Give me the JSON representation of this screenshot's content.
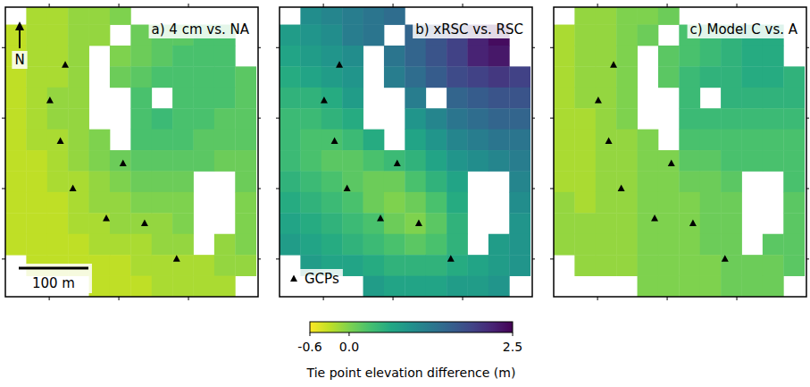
{
  "chart_data": [
    {
      "type": "heatmap",
      "title": "a) 4 cm vs. NA",
      "x": [
        15,
        45,
        75,
        105,
        135,
        165,
        195,
        225,
        255,
        285,
        315,
        345
      ],
      "y": [
        405,
        375,
        345,
        315,
        285,
        255,
        225,
        195,
        165,
        135,
        105,
        75,
        45,
        15
      ],
      "values": [
        [
          null,
          -0.2,
          -0.2,
          -0.1,
          -0.1,
          0.0,
          null,
          null,
          null,
          null,
          null,
          null
        ],
        [
          -0.3,
          -0.2,
          -0.2,
          -0.1,
          -0.1,
          null,
          0.1,
          0.2,
          0.2,
          0.3,
          0.3,
          null
        ],
        [
          -0.3,
          -0.2,
          -0.2,
          -0.1,
          null,
          0.0,
          0.1,
          0.2,
          0.3,
          0.3,
          0.3,
          null
        ],
        [
          -0.3,
          -0.2,
          -0.2,
          -0.1,
          null,
          0.1,
          0.2,
          0.3,
          0.3,
          0.3,
          0.3,
          0.2
        ],
        [
          -0.3,
          -0.2,
          -0.1,
          -0.1,
          null,
          null,
          0.3,
          null,
          0.3,
          0.3,
          0.3,
          0.2
        ],
        [
          -0.3,
          -0.2,
          -0.1,
          -0.1,
          null,
          null,
          0.3,
          0.4,
          0.3,
          0.3,
          0.2,
          0.2
        ],
        [
          -0.3,
          -0.2,
          -0.2,
          -0.1,
          0.0,
          null,
          0.3,
          0.3,
          0.3,
          0.2,
          0.2,
          0.2
        ],
        [
          -0.3,
          -0.3,
          -0.2,
          -0.1,
          0.0,
          0.1,
          0.2,
          0.2,
          0.2,
          0.2,
          0.1,
          0.1
        ],
        [
          -0.3,
          -0.3,
          -0.2,
          -0.2,
          -0.1,
          0.0,
          0.1,
          0.1,
          0.1,
          null,
          null,
          0.1
        ],
        [
          -0.3,
          -0.3,
          -0.3,
          -0.2,
          -0.1,
          -0.1,
          0.0,
          0.0,
          0.0,
          null,
          null,
          0.0
        ],
        [
          -0.3,
          -0.3,
          -0.3,
          -0.2,
          -0.2,
          -0.1,
          -0.1,
          -0.1,
          0.0,
          null,
          null,
          0.0
        ],
        [
          -0.3,
          -0.3,
          -0.3,
          -0.3,
          -0.2,
          -0.2,
          -0.2,
          -0.1,
          -0.1,
          null,
          -0.1,
          0.0
        ],
        [
          null,
          -0.3,
          -0.3,
          -0.3,
          -0.3,
          -0.3,
          -0.2,
          -0.2,
          -0.2,
          -0.2,
          -0.1,
          -0.1
        ],
        [
          null,
          null,
          null,
          null,
          -0.3,
          -0.3,
          -0.3,
          -0.2,
          -0.2,
          -0.2,
          -0.2,
          null
        ]
      ],
      "xlim": [
        0,
        363
      ],
      "ylim": [
        0,
        415
      ],
      "xticks": [
        63,
        163,
        263
      ],
      "yticks": [
        54,
        155,
        256,
        357
      ],
      "tick_labels": false,
      "series": [
        {
          "type": "scatter",
          "marker": "triangle",
          "color": "#000000",
          "x": [
            86,
            64,
            79,
            169,
            97,
            145,
            200,
            246
          ],
          "values": [
            332,
            281,
            223,
            191,
            155,
            112,
            105,
            54
          ]
        }
      ],
      "scale_bar": {
        "label": "100 m",
        "length": 100
      },
      "north_arrow": "N"
    },
    {
      "type": "heatmap",
      "title": "b) xRSC vs. RSC",
      "x": [
        15,
        45,
        75,
        105,
        135,
        165,
        195,
        225,
        255,
        285,
        315,
        345
      ],
      "y": [
        405,
        375,
        345,
        315,
        285,
        255,
        225,
        195,
        165,
        135,
        105,
        75,
        45,
        15
      ],
      "values": [
        [
          null,
          1.0,
          1.1,
          1.2,
          1.3,
          1.4,
          null,
          null,
          null,
          null,
          null,
          null
        ],
        [
          0.8,
          0.9,
          1.0,
          1.2,
          1.3,
          null,
          1.5,
          1.7,
          1.9,
          2.2,
          2.4,
          null
        ],
        [
          0.7,
          0.8,
          0.9,
          1.0,
          null,
          1.3,
          1.5,
          1.7,
          1.9,
          2.2,
          2.3,
          null
        ],
        [
          0.6,
          0.7,
          0.8,
          0.9,
          null,
          1.2,
          1.4,
          1.6,
          1.8,
          1.9,
          2.0,
          1.9
        ],
        [
          0.5,
          0.5,
          0.6,
          0.8,
          null,
          null,
          1.2,
          null,
          1.5,
          1.6,
          1.7,
          1.7
        ],
        [
          0.4,
          0.4,
          0.5,
          0.6,
          null,
          null,
          0.9,
          1.1,
          1.3,
          1.4,
          1.5,
          1.5
        ],
        [
          0.4,
          0.3,
          0.3,
          0.4,
          0.6,
          null,
          0.7,
          0.9,
          1.1,
          1.2,
          1.3,
          1.3
        ],
        [
          0.4,
          0.3,
          0.2,
          0.2,
          0.3,
          0.4,
          0.5,
          0.7,
          0.9,
          1.0,
          1.1,
          1.2
        ],
        [
          0.5,
          0.4,
          0.3,
          0.2,
          0.1,
          0.1,
          0.3,
          0.5,
          0.7,
          null,
          null,
          1.1
        ],
        [
          0.6,
          0.5,
          0.4,
          0.3,
          0.1,
          0.0,
          0.1,
          0.3,
          0.6,
          null,
          null,
          1.0
        ],
        [
          0.7,
          0.6,
          0.5,
          0.4,
          0.3,
          0.1,
          0.0,
          0.2,
          0.5,
          null,
          null,
          0.9
        ],
        [
          0.8,
          0.7,
          0.6,
          0.5,
          0.4,
          0.3,
          0.2,
          0.3,
          0.5,
          null,
          0.8,
          0.9
        ],
        [
          null,
          0.8,
          0.7,
          0.7,
          0.6,
          0.5,
          0.5,
          0.5,
          0.6,
          0.7,
          0.8,
          0.9
        ],
        [
          null,
          null,
          null,
          null,
          0.8,
          0.7,
          0.7,
          0.7,
          0.8,
          0.8,
          0.9,
          null
        ]
      ],
      "xlim": [
        0,
        363
      ],
      "ylim": [
        0,
        415
      ],
      "xticks": [
        63,
        163,
        263
      ],
      "yticks": [
        54,
        155,
        256,
        357
      ],
      "tick_labels": false,
      "series": [
        {
          "name": "GCPs",
          "type": "scatter",
          "marker": "triangle",
          "color": "#000000",
          "x": [
            86,
            64,
            79,
            169,
            97,
            145,
            200,
            246
          ],
          "values": [
            332,
            281,
            223,
            191,
            155,
            112,
            105,
            54
          ]
        }
      ],
      "legend": "lower left"
    },
    {
      "type": "heatmap",
      "title": "c) Model C vs. A",
      "x": [
        15,
        45,
        75,
        105,
        135,
        165,
        195,
        225,
        255,
        285,
        315,
        345
      ],
      "y": [
        405,
        375,
        345,
        315,
        285,
        255,
        225,
        195,
        165,
        135,
        105,
        75,
        45,
        15
      ],
      "values": [
        [
          null,
          -0.1,
          -0.1,
          0.0,
          0.0,
          0.1,
          null,
          null,
          null,
          null,
          null,
          null
        ],
        [
          -0.2,
          -0.1,
          -0.1,
          0.0,
          0.1,
          null,
          0.3,
          0.4,
          0.5,
          0.6,
          0.6,
          null
        ],
        [
          -0.2,
          -0.1,
          -0.1,
          0.0,
          null,
          0.2,
          0.3,
          0.4,
          0.5,
          0.6,
          0.6,
          null
        ],
        [
          -0.2,
          -0.1,
          -0.1,
          0.0,
          null,
          0.2,
          0.4,
          0.5,
          0.5,
          0.6,
          0.6,
          0.5
        ],
        [
          -0.2,
          -0.1,
          -0.1,
          0.0,
          null,
          null,
          0.4,
          null,
          0.5,
          0.5,
          0.5,
          0.5
        ],
        [
          -0.2,
          -0.2,
          -0.1,
          0.0,
          null,
          null,
          0.4,
          0.4,
          0.4,
          0.4,
          0.4,
          0.4
        ],
        [
          -0.2,
          -0.2,
          -0.1,
          -0.1,
          0.0,
          null,
          0.3,
          0.3,
          0.3,
          0.3,
          0.3,
          0.3
        ],
        [
          -0.2,
          -0.2,
          -0.1,
          -0.1,
          0.0,
          0.0,
          0.2,
          0.2,
          0.3,
          0.3,
          0.3,
          0.3
        ],
        [
          -0.2,
          -0.2,
          -0.1,
          -0.1,
          0.0,
          0.0,
          0.1,
          0.1,
          0.2,
          null,
          null,
          0.3
        ],
        [
          -0.1,
          -0.2,
          -0.1,
          -0.1,
          0.0,
          0.0,
          0.0,
          0.1,
          0.1,
          null,
          null,
          0.2
        ],
        [
          -0.1,
          -0.1,
          -0.1,
          -0.1,
          0.0,
          0.0,
          0.0,
          0.1,
          0.1,
          null,
          null,
          0.2
        ],
        [
          -0.1,
          -0.1,
          -0.1,
          -0.1,
          0.0,
          0.0,
          0.0,
          0.1,
          0.1,
          null,
          0.2,
          0.2
        ],
        [
          null,
          -0.1,
          -0.1,
          -0.1,
          0.0,
          0.0,
          0.0,
          0.0,
          0.1,
          0.1,
          0.1,
          0.2
        ],
        [
          null,
          null,
          null,
          null,
          0.0,
          0.0,
          0.0,
          0.0,
          0.1,
          0.1,
          0.1,
          null
        ]
      ],
      "xlim": [
        0,
        363
      ],
      "ylim": [
        0,
        415
      ],
      "xticks": [
        63,
        163,
        263
      ],
      "yticks": [
        54,
        155,
        256,
        357
      ],
      "tick_labels": false,
      "series": [
        {
          "type": "scatter",
          "marker": "triangle",
          "color": "#000000",
          "x": [
            86,
            64,
            79,
            169,
            97,
            145,
            200,
            246
          ],
          "values": [
            332,
            281,
            223,
            191,
            155,
            112,
            105,
            54
          ]
        }
      ]
    }
  ],
  "colorbar": {
    "label": "Tie point elevation difference (m)",
    "range": [
      -0.6,
      2.5
    ],
    "ticks": [
      -0.6,
      {
        "value": 0,
        "label": "0.0"
      },
      2.5
    ]
  }
}
